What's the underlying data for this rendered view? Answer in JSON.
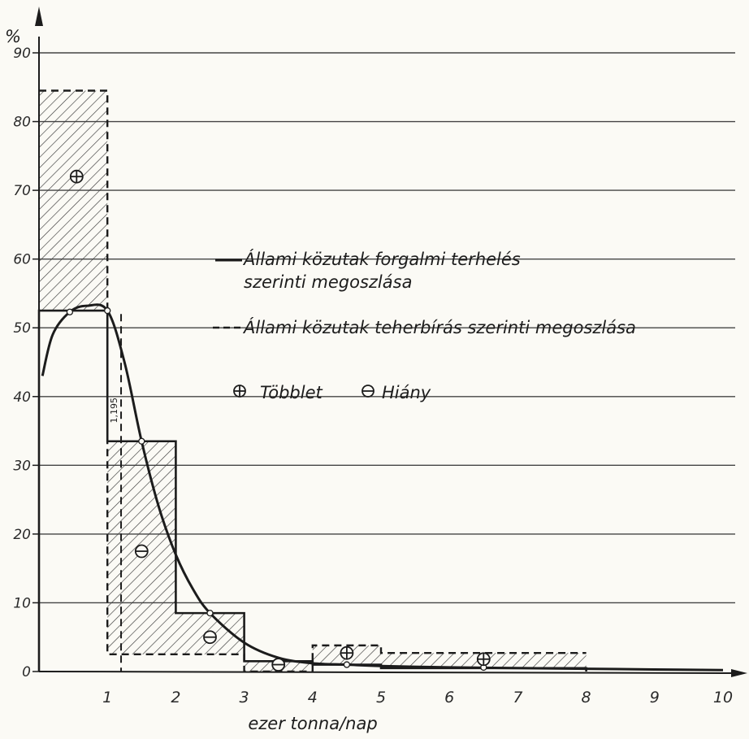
{
  "chart_data": {
    "type": "bar",
    "y_unit_label": "%",
    "xlabel": "ezer tonna/nap",
    "xlim": [
      0,
      10
    ],
    "ylim": [
      0,
      90
    ],
    "x_ticks": [
      "1",
      "2",
      "3",
      "4",
      "5",
      "6",
      "7",
      "8",
      "9",
      "10"
    ],
    "y_ticks": [
      "0",
      "10",
      "20",
      "30",
      "40",
      "50",
      "60",
      "70",
      "80",
      "90"
    ],
    "grid": "horizontal",
    "bins": [
      {
        "x0": 0,
        "x1": 1,
        "load": 52.5,
        "capacity": 84.5,
        "marker": "surplus"
      },
      {
        "x0": 1,
        "x1": 2,
        "load": 33.5,
        "capacity": 2.5,
        "marker": "deficit"
      },
      {
        "x0": 2,
        "x1": 3,
        "load": 8.5,
        "capacity": 2.5,
        "marker": "deficit"
      },
      {
        "x0": 3,
        "x1": 4,
        "load": 1.5,
        "capacity": 0.0,
        "marker": "deficit"
      },
      {
        "x0": 4,
        "x1": 5,
        "load": 1.0,
        "capacity": 3.8,
        "marker": "surplus"
      },
      {
        "x0": 5,
        "x1": 8,
        "load": 0.5,
        "capacity": 2.7,
        "marker": "surplus"
      }
    ],
    "curve": {
      "name": "Állami közutak forgalmi terhelés szerinti megoszlása",
      "points": [
        [
          0.05,
          43
        ],
        [
          0.2,
          49
        ],
        [
          0.45,
          52.3
        ],
        [
          0.7,
          53.2
        ],
        [
          1.0,
          52.5
        ],
        [
          1.25,
          45
        ],
        [
          1.5,
          33.5
        ],
        [
          1.75,
          24
        ],
        [
          2.0,
          17
        ],
        [
          2.25,
          12
        ],
        [
          2.5,
          8.5
        ],
        [
          3.0,
          4.2
        ],
        [
          3.5,
          2.0
        ],
        [
          4.0,
          1.2
        ],
        [
          4.5,
          1.0
        ],
        [
          5.0,
          0.8
        ],
        [
          6.0,
          0.6
        ],
        [
          7.0,
          0.5
        ],
        [
          8.0,
          0.4
        ],
        [
          9.0,
          0.3
        ],
        [
          10.0,
          0.2
        ]
      ]
    },
    "dashed_marker": {
      "x": 1.2,
      "label": "1,195"
    },
    "legend": {
      "load_line": "Állami közutak forgalmi terhelés szerinti megoszlása",
      "capacity_line": "Állami közutak teherbírás szerinti megoszlása",
      "surplus": "Többlet",
      "deficit": "Hiány"
    },
    "colors": {
      "ink": "#1c1c1c",
      "paper": "#fbfaf5",
      "grid": "#444444"
    }
  }
}
